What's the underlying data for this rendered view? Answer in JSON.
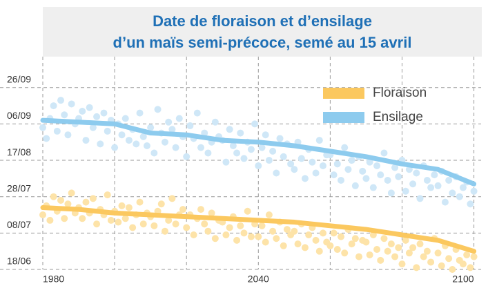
{
  "chart_data": {
    "type": "scatter",
    "title": [
      "Date de floraison et d’ensilage",
      "d’un maïs semi-précoce, semé au 15 avril"
    ],
    "x": [
      1980,
      1981,
      1982,
      1983,
      1984,
      1985,
      1986,
      1987,
      1988,
      1989,
      1990,
      1991,
      1992,
      1993,
      1994,
      1995,
      1996,
      1997,
      1998,
      1999,
      2000,
      2001,
      2002,
      2003,
      2004,
      2005,
      2006,
      2007,
      2008,
      2009,
      2010,
      2011,
      2012,
      2013,
      2014,
      2015,
      2016,
      2017,
      2018,
      2019,
      2020,
      2021,
      2022,
      2023,
      2024,
      2025,
      2026,
      2027,
      2028,
      2029,
      2030,
      2031,
      2032,
      2033,
      2034,
      2035,
      2036,
      2037,
      2038,
      2039,
      2040,
      2041,
      2042,
      2043,
      2044,
      2045,
      2046,
      2047,
      2048,
      2049,
      2050,
      2051,
      2052,
      2053,
      2054,
      2055,
      2056,
      2057,
      2058,
      2059,
      2060,
      2061,
      2062,
      2063,
      2064,
      2065,
      2066,
      2067,
      2068,
      2069,
      2070,
      2071,
      2072,
      2073,
      2074,
      2075,
      2076,
      2077,
      2078,
      2079,
      2080,
      2081,
      2082,
      2083,
      2084,
      2085,
      2086,
      2087,
      2088,
      2089,
      2090,
      2091,
      2092,
      2093,
      2094,
      2095,
      2096,
      2097,
      2098,
      2099,
      2100
    ],
    "series": [
      {
        "name": "Floraison",
        "color": "#fbc85f",
        "point_color": "#fde3a8",
        "values": [
          199,
          204,
          196,
          209,
          201,
          207,
          197,
          205,
          211,
          200,
          203,
          197,
          206,
          200,
          208,
          194,
          202,
          199,
          210,
          196,
          201,
          195,
          204,
          197,
          203,
          192,
          199,
          206,
          194,
          200,
          198,
          193,
          201,
          205,
          190,
          196,
          208,
          194,
          199,
          202,
          192,
          199,
          188,
          197,
          202,
          194,
          190,
          200,
          186,
          196,
          195,
          188,
          192,
          198,
          185,
          193,
          189,
          201,
          187,
          194,
          187,
          193,
          184,
          199,
          190,
          186,
          195,
          182,
          191,
          188,
          190,
          183,
          194,
          181,
          188,
          192,
          185,
          179,
          189,
          184,
          182,
          189,
          180,
          187,
          178,
          191,
          183,
          186,
          176,
          185,
          184,
          177,
          188,
          180,
          174,
          186,
          179,
          183,
          176,
          181,
          172,
          185,
          178,
          181,
          170,
          183,
          176,
          179,
          173,
          186,
          178,
          171,
          182,
          175,
          169,
          180,
          174,
          172,
          177,
          170,
          176
        ],
        "trend": {
          "x": [
            1980,
            1990,
            2000,
            2010,
            2020,
            2030,
            2040,
            2050,
            2060,
            2070,
            2080,
            2090,
            2100
          ],
          "values": [
            203,
            202,
            200,
            199,
            198,
            197,
            196,
            195,
            193,
            191,
            188,
            185,
            179
          ]
        }
      },
      {
        "name": "Ensilage",
        "color": "#8dcbee",
        "point_color": "#cfe7f7",
        "values": [
          247,
          241,
          252,
          259,
          245,
          262,
          254,
          243,
          260,
          249,
          252,
          256,
          240,
          258,
          247,
          253,
          238,
          255,
          245,
          251,
          236,
          249,
          243,
          252,
          240,
          246,
          238,
          255,
          242,
          237,
          247,
          233,
          257,
          244,
          239,
          250,
          246,
          236,
          252,
          242,
          231,
          248,
          241,
          255,
          236,
          244,
          233,
          239,
          250,
          242,
          240,
          228,
          246,
          237,
          233,
          244,
          230,
          239,
          235,
          249,
          226,
          236,
          243,
          229,
          234,
          222,
          241,
          231,
          238,
          227,
          224,
          239,
          230,
          219,
          235,
          228,
          222,
          240,
          226,
          232,
          232,
          221,
          227,
          218,
          236,
          224,
          229,
          215,
          231,
          223,
          219,
          228,
          214,
          226,
          221,
          233,
          218,
          211,
          225,
          220,
          229,
          212,
          224,
          216,
          222,
          208,
          226,
          218,
          214,
          221,
          215,
          223,
          206,
          218,
          211,
          220,
          209,
          214,
          217,
          205,
          212
        ],
        "trend": {
          "x": [
            1980,
            1990,
            2000,
            2010,
            2020,
            2030,
            2040,
            2050,
            2060,
            2070,
            2080,
            2090,
            2100
          ],
          "values": [
            251,
            250,
            249,
            244,
            243,
            240,
            239,
            237,
            234,
            231,
            227,
            224,
            216
          ]
        }
      }
    ],
    "xlim": [
      1980,
      2102
    ],
    "xticks": [
      1980,
      2040,
      2100
    ],
    "xgrid": [
      2000,
      2020,
      2060,
      2080
    ],
    "ylim": [
      169,
      286
    ],
    "yticks": [
      {
        "value": 169,
        "label": "18/06"
      },
      {
        "value": 189,
        "label": "08/07"
      },
      {
        "value": 209,
        "label": "28/07"
      },
      {
        "value": 229,
        "label": "17/08"
      },
      {
        "value": 249,
        "label": "06/09"
      },
      {
        "value": 269,
        "label": "26/09"
      }
    ],
    "grid": true,
    "legend": "upper right"
  }
}
